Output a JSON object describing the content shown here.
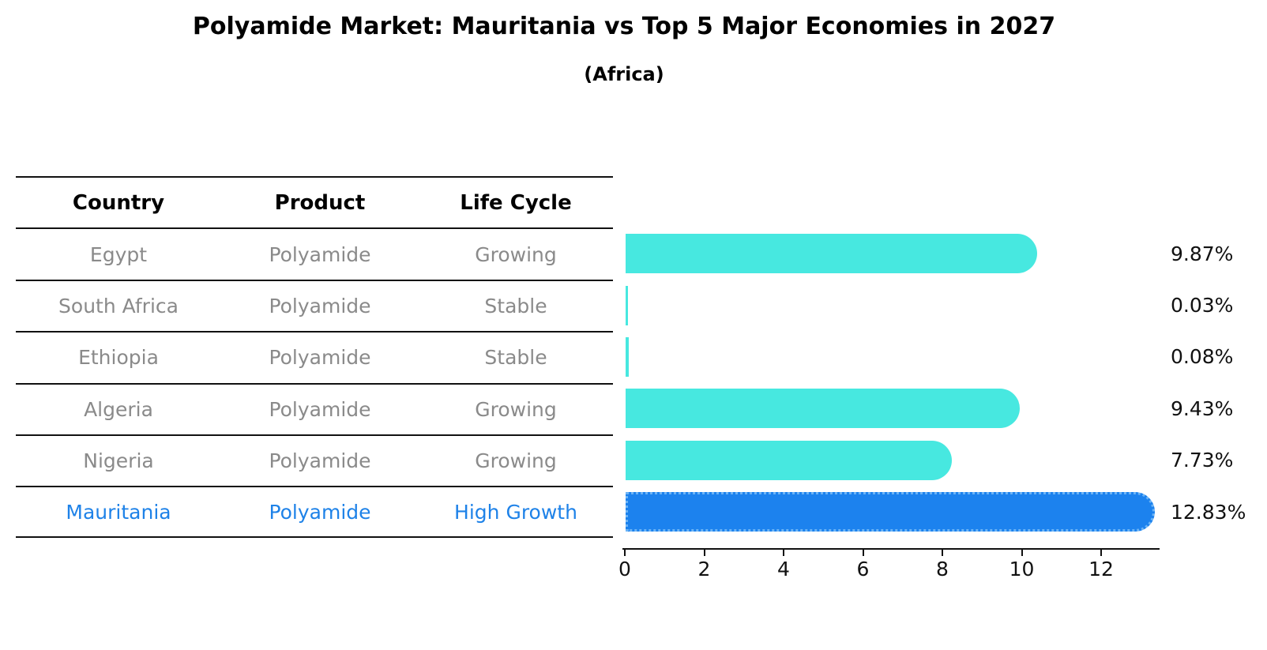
{
  "title": "Polyamide Market: Mauritania vs Top 5 Major Economies in 2027",
  "subtitle": "(Africa)",
  "table": {
    "headers": [
      "Country",
      "Product",
      "Life Cycle"
    ],
    "rows": [
      {
        "country": "Egypt",
        "product": "Polyamide",
        "life_cycle": "Growing",
        "value_label": "9.87%",
        "highlight": false
      },
      {
        "country": "South Africa",
        "product": "Polyamide",
        "life_cycle": "Stable",
        "value_label": "0.03%",
        "highlight": false
      },
      {
        "country": "Ethiopia",
        "product": "Polyamide",
        "life_cycle": "Stable",
        "value_label": "0.08%",
        "highlight": false
      },
      {
        "country": "Algeria",
        "product": "Polyamide",
        "life_cycle": "Growing",
        "value_label": "9.43%",
        "highlight": false
      },
      {
        "country": "Nigeria",
        "product": "Polyamide",
        "life_cycle": "Growing",
        "value_label": "7.73%",
        "highlight": false
      },
      {
        "country": "Mauritania",
        "product": "Polyamide",
        "life_cycle": "High Growth",
        "value_label": "12.83%",
        "highlight": true
      }
    ]
  },
  "chart_data": {
    "type": "bar",
    "orientation": "horizontal",
    "title": "Polyamide Market: Mauritania vs Top 5 Major Economies in 2027",
    "subtitle": "(Africa)",
    "categories": [
      "Egypt",
      "South Africa",
      "Ethiopia",
      "Algeria",
      "Nigeria",
      "Mauritania"
    ],
    "values": [
      9.87,
      0.03,
      0.08,
      9.43,
      7.73,
      12.83
    ],
    "value_labels": [
      "9.87%",
      "0.03%",
      "0.08%",
      "9.43%",
      "7.73%",
      "12.83%"
    ],
    "xlabel": "",
    "ylabel": "",
    "xlim": [
      0,
      13.5
    ],
    "xticks": [
      0,
      2,
      4,
      6,
      8,
      10,
      12
    ],
    "grid": false,
    "legend": false,
    "bar_color": "#47E8E0",
    "highlight_color": "#1C82EE",
    "highlight_category": "Mauritania",
    "highlight_border_style": "dotted"
  },
  "colors": {
    "background": "#FFFFFF",
    "bar_cyan": "#47E8E0",
    "bar_blue": "#1C82EE",
    "row_text_gray": "#8A8A8A",
    "highlight_text_blue": "#1E82E8",
    "text_black": "#000000"
  }
}
